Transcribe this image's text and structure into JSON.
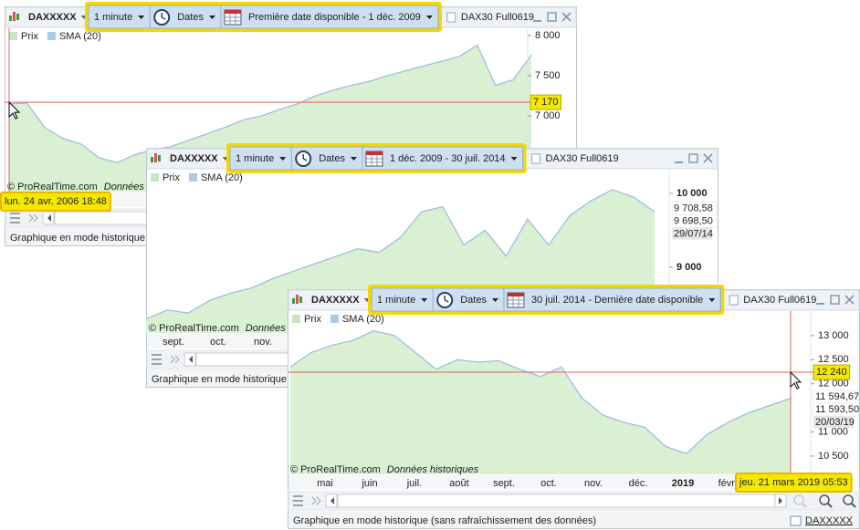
{
  "windows": [
    {
      "toolbar": {
        "symbol": "DAXXXXX",
        "period": "1 minute",
        "mode": "Dates",
        "range": "Première date disponible - 1 déc. 2009",
        "title": "DAX30 Full0619"
      },
      "legend": [
        {
          "name": "Prix",
          "color": "#c8e6c0"
        },
        {
          "name": "SMA (20)",
          "color": "#a9cbe9"
        }
      ],
      "watermark": {
        "source": "© ProRealTime.com",
        "note": "Données historiques"
      },
      "status": "Graphique en mode historique (sans rafraîchissement des données)",
      "cursor_date": "lun. 24 avr. 2006 18:48",
      "chart": {
        "type": "line",
        "color": "#9dbfe0",
        "fill": "#d9f0d3",
        "ylim": [
          6060,
          8090
        ],
        "yticks": [
          {
            "value": 7000,
            "label": "7 000"
          },
          {
            "value": 7500,
            "label": "7 500"
          },
          {
            "value": 8000,
            "label": "8 000"
          }
        ],
        "values": [
          7150,
          7160,
          6850,
          6720,
          6650,
          6480,
          6420,
          6520,
          6580,
          6620,
          6700,
          6780,
          6860,
          6950,
          7000,
          7080,
          7150,
          7250,
          7320,
          7380,
          7430,
          7500,
          7560,
          7620,
          7680,
          7740,
          7880,
          7380,
          7450,
          7760
        ],
        "cursor_price": {
          "value": 7170,
          "label": "7 170"
        }
      }
    },
    {
      "toolbar": {
        "symbol": "DAXXXXX",
        "period": "1 minute",
        "mode": "Dates",
        "range": "1 déc. 2009 - 30 juil. 2014",
        "title": "DAX30 Full0619"
      },
      "legend": [
        {
          "name": "Prix",
          "color": "#c8e6c0"
        },
        {
          "name": "SMA (20)",
          "color": "#a9cbe9"
        }
      ],
      "watermark": {
        "source": "© ProRealTime.com",
        "note": "Données historiques"
      },
      "status": "Graphique en mode historique (sans rafraîchissement des données)",
      "chart": {
        "type": "line",
        "color": "#9dbfe0",
        "fill": "#d9f0d3",
        "ylim": [
          8110,
          10320
        ],
        "yticks": [
          {
            "value": 9000,
            "label": "9 000"
          },
          {
            "value": 10000,
            "label": "10 000"
          }
        ],
        "values": [
          8300,
          8420,
          8380,
          8550,
          8650,
          8720,
          8850,
          8950,
          9050,
          9150,
          9250,
          9200,
          9400,
          9750,
          9820,
          9300,
          9500,
          9150,
          9650,
          9300,
          9700,
          9900,
          10050,
          9950,
          9750
        ],
        "quotes": [
          {
            "value": 9708.58,
            "label": "9 708,58",
            "color": "#8fbfe6"
          },
          {
            "value": 9698.5,
            "label": "9 698,50",
            "color": "#eb9aa6"
          }
        ],
        "quote_date": "29/07/14",
        "categories": [
          "sept.",
          "oct.",
          "nov."
        ]
      }
    },
    {
      "toolbar": {
        "symbol": "DAXXXXX",
        "period": "1 minute",
        "mode": "Dates",
        "range": "30 juil. 2014 - Dernière date disponible",
        "title": "DAX30 Full0619"
      },
      "legend": [
        {
          "name": "Prix",
          "color": "#c8e6c0"
        },
        {
          "name": "SMA (20)",
          "color": "#a9cbe9"
        }
      ],
      "watermark": {
        "source": "© ProRealTime.com",
        "note": "Données historiques"
      },
      "status": "Graphique en mode historique (sans rafraîchissement des données)",
      "status_link": "DAXXXXX",
      "cursor_date": "jeu. 21 mars 2019 05:53",
      "chart": {
        "type": "line",
        "color": "#9dbfe0",
        "fill": "#d9f0d3",
        "ylim": [
          10120,
          13510
        ],
        "yticks": [
          {
            "value": 10500,
            "label": "10 500"
          },
          {
            "value": 11000,
            "label": "11 000"
          },
          {
            "value": 12000,
            "label": "12 000"
          },
          {
            "value": 12500,
            "label": "12 500"
          },
          {
            "value": 13000,
            "label": "13 000"
          }
        ],
        "values": [
          12350,
          12650,
          12800,
          12900,
          13100,
          13000,
          12650,
          12300,
          12500,
          12450,
          12480,
          12300,
          12150,
          12350,
          11700,
          11350,
          11200,
          11100,
          10700,
          10550,
          10950,
          11200,
          11400,
          11550,
          11700
        ],
        "cursor_price": {
          "value": 12240,
          "label": "12 240"
        },
        "quotes": [
          {
            "value": 11594.67,
            "label": "11 594,67",
            "color": "#8fbfe6"
          },
          {
            "value": 11593.5,
            "label": "11 593,50",
            "color": "#a8d9a0"
          }
        ],
        "quote_date": "20/03/19",
        "categories": [
          "mai",
          "juin",
          "juil.",
          "août",
          "sept.",
          "oct.",
          "nov.",
          "déc.",
          "2019",
          "févr."
        ]
      }
    }
  ]
}
